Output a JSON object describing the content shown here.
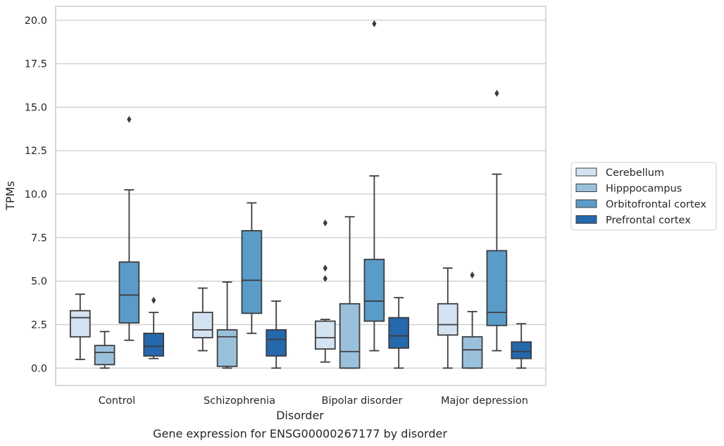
{
  "chart_data": {
    "type": "boxplot",
    "title": "",
    "caption": "Gene expression for ENSG00000267177 by disorder",
    "xlabel": "Disorder",
    "ylabel": "TPMs",
    "ylim": [
      -1.0,
      20.8
    ],
    "yticks": [
      "0.0",
      "2.5",
      "5.0",
      "7.5",
      "10.0",
      "12.5",
      "15.0",
      "17.5",
      "20.0"
    ],
    "grid": true,
    "legend_position": "right",
    "categories": [
      "Control",
      "Schizophrenia",
      "Bipolar disorder",
      "Major depression"
    ],
    "series": [
      {
        "name": "Cerebellum",
        "color": "#d4e3f1",
        "boxes": [
          {
            "whislo": 0.5,
            "q1": 1.8,
            "med": 2.9,
            "q3": 3.3,
            "whishi": 4.25,
            "fliers": []
          },
          {
            "whislo": 1.0,
            "q1": 1.75,
            "med": 2.2,
            "q3": 3.2,
            "whishi": 4.6,
            "fliers": []
          },
          {
            "whislo": 0.35,
            "q1": 1.1,
            "med": 1.75,
            "q3": 2.7,
            "whishi": 2.8,
            "fliers": [
              5.15,
              5.75,
              8.35
            ]
          },
          {
            "whislo": 0.0,
            "q1": 1.9,
            "med": 2.5,
            "q3": 3.7,
            "whishi": 5.75,
            "fliers": []
          }
        ]
      },
      {
        "name": "Hipppocampus",
        "color": "#9ac1dc",
        "boxes": [
          {
            "whislo": 0.0,
            "q1": 0.2,
            "med": 0.9,
            "q3": 1.3,
            "whishi": 2.1,
            "fliers": []
          },
          {
            "whislo": 0.0,
            "q1": 0.1,
            "med": 1.8,
            "q3": 2.2,
            "whishi": 4.95,
            "fliers": []
          },
          {
            "whislo": 0.0,
            "q1": 0.0,
            "med": 0.95,
            "q3": 3.7,
            "whishi": 8.7,
            "fliers": []
          },
          {
            "whislo": 0.0,
            "q1": 0.0,
            "med": 1.05,
            "q3": 1.8,
            "whishi": 3.25,
            "fliers": [
              5.35
            ]
          }
        ]
      },
      {
        "name": "Orbitofrontal cortex",
        "color": "#5a9cc9",
        "boxes": [
          {
            "whislo": 1.6,
            "q1": 2.6,
            "med": 4.2,
            "q3": 6.1,
            "whishi": 10.25,
            "fliers": [
              14.3
            ]
          },
          {
            "whislo": 2.0,
            "q1": 3.15,
            "med": 5.05,
            "q3": 7.9,
            "whishi": 9.5,
            "fliers": []
          },
          {
            "whislo": 1.0,
            "q1": 2.7,
            "med": 3.85,
            "q3": 6.25,
            "whishi": 11.05,
            "fliers": [
              19.8
            ]
          },
          {
            "whislo": 1.0,
            "q1": 2.45,
            "med": 3.2,
            "q3": 6.75,
            "whishi": 11.15,
            "fliers": [
              15.8
            ]
          }
        ]
      },
      {
        "name": "Prefrontal cortex",
        "color": "#2468ad",
        "boxes": [
          {
            "whislo": 0.55,
            "q1": 0.7,
            "med": 1.25,
            "q3": 2.0,
            "whishi": 3.2,
            "fliers": [
              3.9
            ]
          },
          {
            "whislo": 0.0,
            "q1": 0.7,
            "med": 1.65,
            "q3": 2.2,
            "whishi": 3.85,
            "fliers": []
          },
          {
            "whislo": 0.0,
            "q1": 1.15,
            "med": 1.85,
            "q3": 2.9,
            "whishi": 4.05,
            "fliers": []
          },
          {
            "whislo": 0.0,
            "q1": 0.55,
            "med": 0.95,
            "q3": 1.5,
            "whishi": 2.55,
            "fliers": []
          }
        ]
      }
    ]
  }
}
